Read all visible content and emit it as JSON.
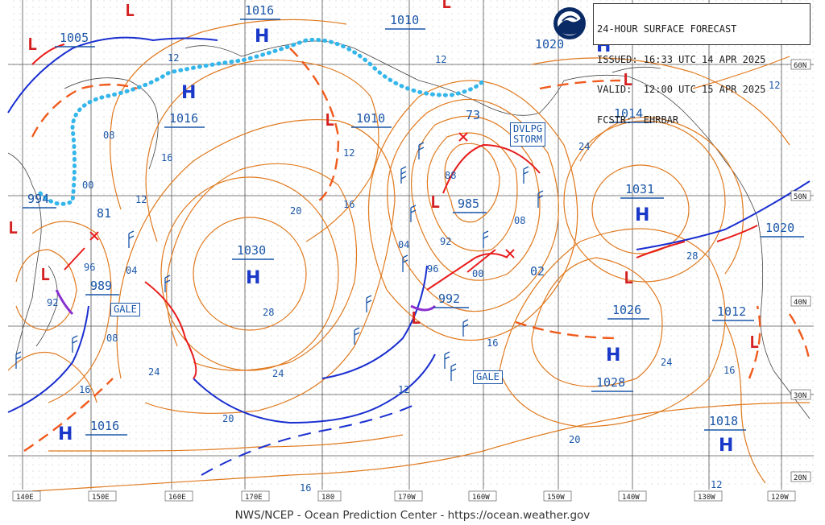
{
  "header": {
    "title": "24-HOUR SURFACE FORECAST",
    "issued": "ISSUED: 16:33 UTC 14 APR 2025",
    "valid": "VALID:  12:00 UTC 15 APR 2025",
    "forecaster": "FCSTR:  EHRBAR"
  },
  "footer": "NWS/NCEP - Ocean Prediction Center - https://ocean.weather.gov",
  "logo_icon": "noaa-logo-icon",
  "colors": {
    "isobar": "#e07a1f",
    "front_warm": "#e81c1c",
    "front_cold": "#1a2fd0",
    "ice": "#35b6ea",
    "trough": "#f05a1c",
    "label": "#1a56a8",
    "high": "#1a39c8",
    "low": "#d42020"
  },
  "longitude_ticks": [
    "140E",
    "150E",
    "160E",
    "170E",
    "180",
    "170W",
    "160W",
    "150W",
    "140W",
    "130W",
    "120W"
  ],
  "latitude_ticks": [
    "60N",
    "50N",
    "40N",
    "30N",
    "20N"
  ],
  "pressure_centers": [
    {
      "type": "H",
      "value": "1016"
    },
    {
      "type": "L",
      "value": "1005"
    },
    {
      "type": "H",
      "value": "1016"
    },
    {
      "type": "L",
      "value": "1010"
    },
    {
      "type": "L",
      "value": "1010"
    },
    {
      "type": "H",
      "value": "1020"
    },
    {
      "type": "L",
      "value": "1014"
    },
    {
      "type": "H",
      "value": "1031"
    },
    {
      "type": "H",
      "value": "1030"
    },
    {
      "type": "L",
      "value": "985"
    },
    {
      "type": "L",
      "value": "992"
    },
    {
      "type": "L",
      "value": "994"
    },
    {
      "type": "L",
      "value": "989"
    },
    {
      "type": "L",
      "value": "1026"
    },
    {
      "type": "H",
      "value": "1028"
    },
    {
      "type": "L",
      "value": "1012"
    },
    {
      "type": "H",
      "value": "1018"
    },
    {
      "type": "H",
      "value": "1016"
    },
    {
      "type": "H",
      "value": "1020"
    }
  ],
  "isobar_labels": [
    "12",
    "12",
    "08",
    "00",
    "16",
    "12",
    "12",
    "20",
    "16",
    "28",
    "24",
    "20",
    "24",
    "16",
    "28",
    "20",
    "16",
    "04",
    "08",
    "96",
    "92",
    "88",
    "92",
    "96",
    "00",
    "04",
    "08",
    "12",
    "16",
    "24",
    "24",
    "16",
    "12",
    "96",
    "92",
    "81",
    "73",
    "02",
    "16",
    "12",
    "08",
    "16",
    "00",
    "04"
  ],
  "annotations": {
    "storm": [
      "DVLPG",
      "STORM"
    ],
    "gale1": "GALE",
    "gale2": "GALE",
    "storm_value": "73",
    "low_value_81": "81",
    "low_value_02": "02"
  }
}
